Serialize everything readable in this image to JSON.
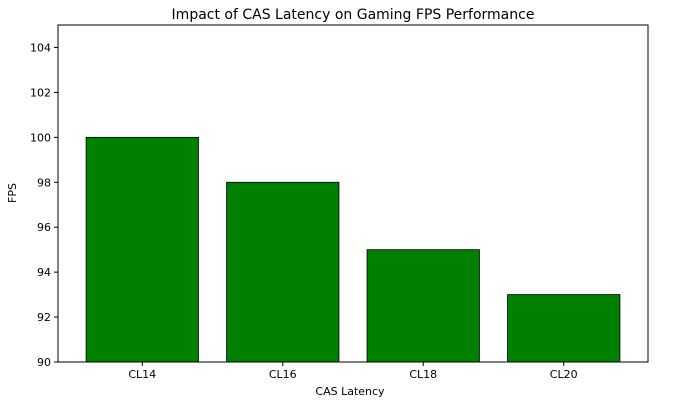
{
  "chart_data": {
    "type": "bar",
    "title": "Impact of CAS Latency on Gaming FPS Performance",
    "xlabel": "CAS Latency",
    "ylabel": "FPS",
    "categories": [
      "CL14",
      "CL16",
      "CL18",
      "CL20"
    ],
    "values": [
      100,
      98,
      95,
      93
    ],
    "ylim": [
      90,
      105
    ],
    "yticks": [
      90,
      92,
      94,
      96,
      98,
      100,
      102,
      104
    ],
    "bar_color": "#008000",
    "bar_edge_color": "#000000",
    "grid": false,
    "legend": "none"
  }
}
